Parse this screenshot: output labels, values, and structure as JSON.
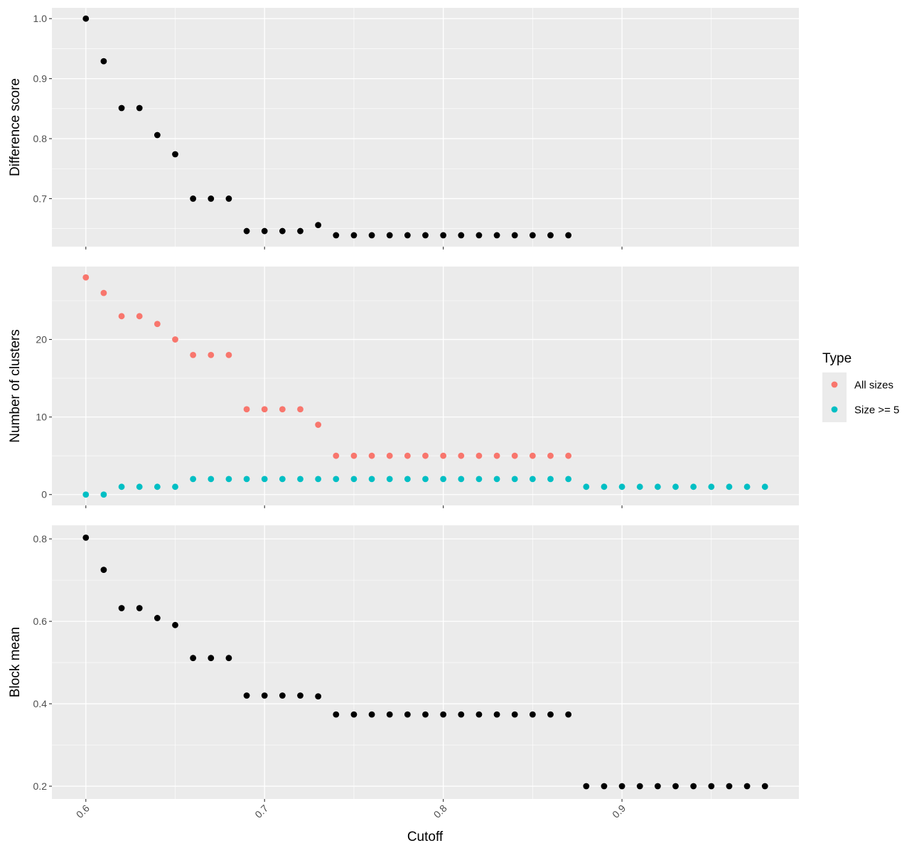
{
  "chart_data": {
    "type": "scatter",
    "xlabel": "Cutoff",
    "x_ticks": [
      "0.6",
      "0.7",
      "0.8",
      "0.9"
    ],
    "xlim": [
      0.581,
      0.999
    ],
    "grid": true,
    "legend": {
      "title": "Type",
      "position": "right",
      "entries": [
        {
          "label": "All sizes",
          "color": "#F8766D"
        },
        {
          "label": "Size >= 5",
          "color": "#00BFC4"
        }
      ]
    },
    "panels": [
      {
        "ylabel": "Difference score",
        "ylim": [
          0.62,
          1.018
        ],
        "y_ticks": [
          "0.7",
          "0.8",
          "0.9",
          "1.0"
        ],
        "series": [
          {
            "color": "#000000",
            "x": [
              0.6,
              0.61,
              0.62,
              0.63,
              0.64,
              0.65,
              0.66,
              0.67,
              0.68,
              0.69,
              0.7,
              0.71,
              0.72,
              0.73,
              0.74,
              0.75,
              0.76,
              0.77,
              0.78,
              0.79,
              0.8,
              0.81,
              0.82,
              0.83,
              0.84,
              0.85,
              0.86,
              0.87
            ],
            "y": [
              1.0,
              0.929,
              0.851,
              0.851,
              0.806,
              0.774,
              0.7,
              0.7,
              0.7,
              0.646,
              0.646,
              0.646,
              0.646,
              0.656,
              0.639,
              0.639,
              0.639,
              0.639,
              0.639,
              0.639,
              0.639,
              0.639,
              0.639,
              0.639,
              0.639,
              0.639,
              0.639,
              0.639
            ]
          }
        ]
      },
      {
        "ylabel": "Number of clusters",
        "ylim": [
          -1.4,
          29.4
        ],
        "y_ticks": [
          "0",
          "10",
          "20"
        ],
        "series": [
          {
            "name": "All sizes",
            "color": "#F8766D",
            "x": [
              0.6,
              0.61,
              0.62,
              0.63,
              0.64,
              0.65,
              0.66,
              0.67,
              0.68,
              0.69,
              0.7,
              0.71,
              0.72,
              0.73,
              0.74,
              0.75,
              0.76,
              0.77,
              0.78,
              0.79,
              0.8,
              0.81,
              0.82,
              0.83,
              0.84,
              0.85,
              0.86,
              0.87
            ],
            "y": [
              28,
              26,
              23,
              23,
              22,
              20,
              18,
              18,
              18,
              11,
              11,
              11,
              11,
              9,
              5,
              5,
              5,
              5,
              5,
              5,
              5,
              5,
              5,
              5,
              5,
              5,
              5,
              5
            ]
          },
          {
            "name": "Size >= 5",
            "color": "#00BFC4",
            "x": [
              0.6,
              0.61,
              0.62,
              0.63,
              0.64,
              0.65,
              0.66,
              0.67,
              0.68,
              0.69,
              0.7,
              0.71,
              0.72,
              0.73,
              0.74,
              0.75,
              0.76,
              0.77,
              0.78,
              0.79,
              0.8,
              0.81,
              0.82,
              0.83,
              0.84,
              0.85,
              0.86,
              0.87,
              0.88,
              0.89,
              0.9,
              0.91,
              0.92,
              0.93,
              0.94,
              0.95,
              0.96,
              0.97,
              0.98
            ],
            "y": [
              0,
              0,
              1,
              1,
              1,
              1,
              2,
              2,
              2,
              2,
              2,
              2,
              2,
              2,
              2,
              2,
              2,
              2,
              2,
              2,
              2,
              2,
              2,
              2,
              2,
              2,
              2,
              2,
              1,
              1,
              1,
              1,
              1,
              1,
              1,
              1,
              1,
              1,
              1
            ]
          }
        ]
      },
      {
        "ylabel": "Block mean",
        "ylim": [
          0.169,
          0.833
        ],
        "y_ticks": [
          "0.2",
          "0.4",
          "0.6",
          "0.8"
        ],
        "series": [
          {
            "color": "#000000",
            "x": [
              0.6,
              0.61,
              0.62,
              0.63,
              0.64,
              0.65,
              0.66,
              0.67,
              0.68,
              0.69,
              0.7,
              0.71,
              0.72,
              0.73,
              0.74,
              0.75,
              0.76,
              0.77,
              0.78,
              0.79,
              0.8,
              0.81,
              0.82,
              0.83,
              0.84,
              0.85,
              0.86,
              0.87,
              0.88,
              0.89,
              0.9,
              0.91,
              0.92,
              0.93,
              0.94,
              0.95,
              0.96,
              0.97,
              0.98
            ],
            "y": [
              0.803,
              0.725,
              0.632,
              0.632,
              0.608,
              0.591,
              0.511,
              0.511,
              0.511,
              0.42,
              0.42,
              0.42,
              0.42,
              0.418,
              0.374,
              0.374,
              0.374,
              0.374,
              0.374,
              0.374,
              0.374,
              0.374,
              0.374,
              0.374,
              0.374,
              0.374,
              0.374,
              0.374,
              0.2,
              0.2,
              0.2,
              0.2,
              0.2,
              0.2,
              0.2,
              0.2,
              0.2,
              0.2,
              0.2
            ]
          }
        ]
      }
    ]
  }
}
